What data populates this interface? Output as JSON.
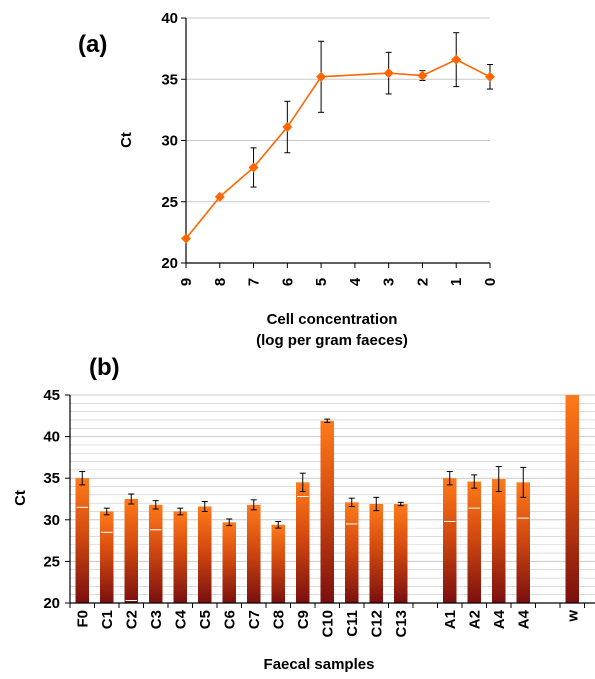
{
  "colors": {
    "accent": "#ff6600",
    "bar_top": "#ff7a1a",
    "bar_bottom": "#7a0f0f",
    "grid": "#c8c8c8",
    "error_bar": "#000000"
  },
  "chart_data": [
    {
      "type": "line",
      "panel_label": "(a)",
      "xlabel": "Cell concentration",
      "xlabel_line2": "(log per gram faeces)",
      "ylabel": "Ct",
      "ylim": [
        20,
        40
      ],
      "yticks": [
        "20",
        "25",
        "30",
        "35",
        "40"
      ],
      "categories": [
        "9",
        "8",
        "7",
        "6",
        "5",
        "4",
        "3",
        "2",
        "1",
        "0"
      ],
      "grid": "horizontal",
      "marker": "diamond",
      "series": [
        {
          "values": [
            22.0,
            25.4,
            27.8,
            31.1,
            35.2,
            null,
            35.5,
            35.3,
            36.6,
            35.2
          ],
          "errors": [
            0,
            0,
            1.6,
            2.1,
            2.9,
            null,
            1.7,
            0.4,
            2.2,
            1.0
          ]
        }
      ]
    },
    {
      "type": "bar",
      "panel_label": "(b)",
      "xlabel": "Faecal samples",
      "ylabel": "Ct",
      "ylim": [
        20,
        45
      ],
      "yticks": [
        "20",
        "25",
        "30",
        "35",
        "40",
        "45"
      ],
      "grid": "horizontal",
      "categories": [
        "F0",
        "C1",
        "C2",
        "C3",
        "C4",
        "C5",
        "C6",
        "C7",
        "C8",
        "C9",
        "C10",
        "C11",
        "C12",
        "C13",
        "",
        "A1",
        "A2",
        "A4",
        "A4",
        "",
        "w"
      ],
      "series": [
        {
          "values": [
            35.0,
            31.0,
            32.5,
            31.8,
            31.0,
            31.6,
            29.7,
            31.8,
            29.4,
            34.5,
            41.9,
            32.1,
            31.9,
            31.9,
            null,
            35.0,
            34.6,
            34.9,
            34.5,
            null,
            45.0
          ],
          "errors": [
            0.8,
            0.4,
            0.6,
            0.5,
            0.4,
            0.6,
            0.4,
            0.6,
            0.4,
            1.1,
            0.2,
            0.5,
            0.8,
            0.2,
            null,
            0.8,
            0.8,
            1.5,
            1.8,
            null,
            0
          ],
          "inner_marks": [
            31.5,
            28.5,
            20.3,
            28.8,
            null,
            null,
            null,
            null,
            null,
            32.8,
            null,
            29.5,
            null,
            null,
            null,
            29.8,
            31.4,
            null,
            30.2,
            null,
            null
          ]
        }
      ]
    }
  ]
}
